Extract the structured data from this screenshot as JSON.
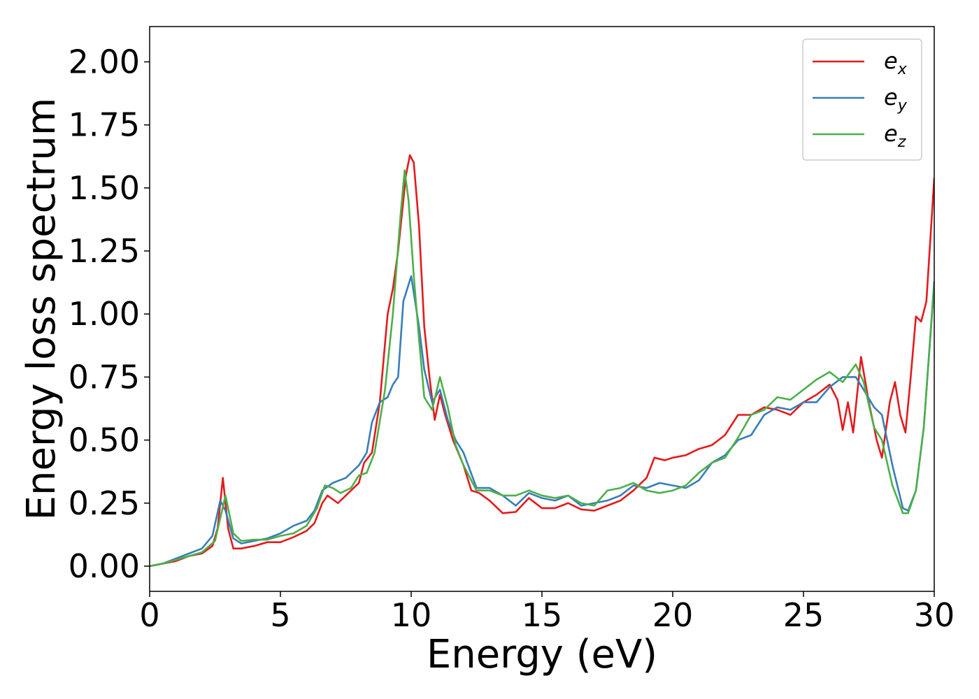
{
  "chart_data": {
    "type": "line",
    "xlabel": "Energy (eV)",
    "ylabel": "Energy loss spectrum",
    "xlim": [
      0,
      30
    ],
    "xticks": [
      0,
      5,
      10,
      15,
      20,
      25,
      30
    ],
    "ylim": [
      -0.1,
      2.14
    ],
    "yticks": [
      {
        "value": 0,
        "label": "0.00"
      },
      {
        "value": 0.25,
        "label": "0.25"
      },
      {
        "value": 0.5,
        "label": "0.50"
      },
      {
        "value": 0.75,
        "label": "0.75"
      },
      {
        "value": 1,
        "label": "1.00"
      },
      {
        "value": 1.25,
        "label": "1.25"
      },
      {
        "value": 1.5,
        "label": "1.50"
      },
      {
        "value": 1.75,
        "label": "1.75"
      },
      {
        "value": 2,
        "label": "2.00"
      }
    ],
    "legend": "upper right",
    "grid": false,
    "series": [
      {
        "name": "e_x",
        "color": "#e41a1c",
        "x": [
          0,
          0.5,
          1,
          1.5,
          2,
          2.4,
          2.6,
          2.8,
          3.0,
          3.2,
          3.5,
          4,
          4.5,
          5,
          5.5,
          6,
          6.3,
          6.6,
          6.8,
          7.2,
          7.6,
          8,
          8.2,
          8.5,
          8.8,
          9.1,
          9.3,
          9.5,
          9.8,
          9.95,
          10.1,
          10.3,
          10.5,
          10.7,
          10.9,
          11.1,
          11.3,
          11.6,
          12,
          12.3,
          12.6,
          13,
          13.5,
          14,
          14.5,
          15,
          15.5,
          16,
          16.5,
          17,
          17.5,
          18,
          18.5,
          19,
          19.3,
          19.7,
          20,
          20.5,
          21,
          21.5,
          22,
          22.5,
          23,
          23.5,
          24,
          24.5,
          25,
          25.5,
          26,
          26.3,
          26.5,
          26.7,
          26.9,
          27.2,
          27.5,
          27.8,
          28,
          28.3,
          28.5,
          28.7,
          28.9,
          29.1,
          29.3,
          29.5,
          29.7,
          30
        ],
        "values": [
          0,
          0.01,
          0.02,
          0.04,
          0.05,
          0.08,
          0.15,
          0.35,
          0.15,
          0.07,
          0.07,
          0.08,
          0.095,
          0.095,
          0.115,
          0.14,
          0.17,
          0.25,
          0.28,
          0.25,
          0.29,
          0.33,
          0.41,
          0.45,
          0.65,
          1.0,
          1.1,
          1.25,
          1.55,
          1.63,
          1.6,
          1.35,
          0.95,
          0.75,
          0.58,
          0.68,
          0.6,
          0.5,
          0.4,
          0.3,
          0.29,
          0.26,
          0.21,
          0.215,
          0.27,
          0.23,
          0.23,
          0.25,
          0.225,
          0.22,
          0.24,
          0.26,
          0.3,
          0.35,
          0.43,
          0.42,
          0.43,
          0.44,
          0.465,
          0.48,
          0.52,
          0.6,
          0.6,
          0.63,
          0.62,
          0.6,
          0.65,
          0.68,
          0.72,
          0.66,
          0.54,
          0.65,
          0.53,
          0.83,
          0.65,
          0.5,
          0.43,
          0.65,
          0.73,
          0.6,
          0.53,
          0.75,
          0.99,
          0.97,
          1.05,
          1.54
        ]
      },
      {
        "name": "e_y",
        "color": "#377eb8",
        "x": [
          0,
          0.5,
          1,
          1.5,
          2,
          2.4,
          2.7,
          2.9,
          3.2,
          3.5,
          4,
          4.5,
          5,
          5.5,
          6,
          6.3,
          6.6,
          7,
          7.5,
          8,
          8.3,
          8.5,
          8.8,
          9.1,
          9.3,
          9.5,
          9.7,
          10,
          10.3,
          10.5,
          10.8,
          11.1,
          11.4,
          11.7,
          12,
          12.5,
          13,
          13.5,
          14,
          14.5,
          15,
          15.5,
          16,
          16.5,
          17,
          17.5,
          18,
          18.5,
          19,
          19.5,
          20,
          20.5,
          21,
          21.5,
          22,
          22.5,
          23,
          23.5,
          24,
          24.5,
          25,
          25.5,
          26,
          26.5,
          27,
          27.3,
          27.7,
          28,
          28.4,
          28.8,
          29,
          29.3,
          29.6,
          30
        ],
        "values": [
          0,
          0.01,
          0.03,
          0.05,
          0.07,
          0.12,
          0.26,
          0.22,
          0.11,
          0.09,
          0.1,
          0.11,
          0.13,
          0.16,
          0.18,
          0.22,
          0.3,
          0.33,
          0.35,
          0.4,
          0.45,
          0.57,
          0.65,
          0.67,
          0.72,
          0.75,
          1.05,
          1.15,
          0.95,
          0.78,
          0.65,
          0.7,
          0.58,
          0.5,
          0.45,
          0.31,
          0.31,
          0.28,
          0.24,
          0.29,
          0.27,
          0.26,
          0.28,
          0.24,
          0.25,
          0.26,
          0.28,
          0.32,
          0.31,
          0.33,
          0.32,
          0.31,
          0.34,
          0.41,
          0.44,
          0.5,
          0.52,
          0.6,
          0.63,
          0.62,
          0.65,
          0.65,
          0.71,
          0.75,
          0.75,
          0.7,
          0.63,
          0.6,
          0.4,
          0.23,
          0.22,
          0.3,
          0.55,
          1.13
        ]
      },
      {
        "name": "e_z",
        "color": "#4daf4a",
        "x": [
          0,
          0.5,
          1,
          1.5,
          2,
          2.5,
          2.9,
          3.2,
          3.5,
          4,
          4.5,
          5,
          5.5,
          6,
          6.4,
          6.7,
          7,
          7.3,
          7.7,
          8,
          8.3,
          8.6,
          9,
          9.3,
          9.6,
          9.75,
          9.9,
          10.1,
          10.3,
          10.5,
          10.8,
          11.1,
          11.4,
          11.7,
          12,
          12.5,
          13,
          13.5,
          14,
          14.5,
          15,
          15.5,
          16,
          16.5,
          17,
          17.5,
          18,
          18.5,
          19,
          19.5,
          20,
          20.5,
          21,
          21.5,
          22,
          22.5,
          23,
          23.5,
          24,
          24.5,
          25,
          25.5,
          26,
          26.5,
          27,
          27.3,
          27.7,
          28,
          28.4,
          28.8,
          29,
          29.3,
          29.6,
          30
        ],
        "values": [
          0,
          0.01,
          0.025,
          0.04,
          0.055,
          0.1,
          0.28,
          0.13,
          0.1,
          0.105,
          0.105,
          0.12,
          0.13,
          0.16,
          0.23,
          0.32,
          0.31,
          0.29,
          0.31,
          0.36,
          0.37,
          0.45,
          0.7,
          1.0,
          1.4,
          1.57,
          1.45,
          1.15,
          0.9,
          0.67,
          0.62,
          0.75,
          0.63,
          0.48,
          0.4,
          0.3,
          0.3,
          0.28,
          0.28,
          0.3,
          0.28,
          0.27,
          0.28,
          0.25,
          0.24,
          0.3,
          0.31,
          0.33,
          0.3,
          0.29,
          0.3,
          0.32,
          0.37,
          0.41,
          0.43,
          0.51,
          0.6,
          0.62,
          0.67,
          0.66,
          0.7,
          0.74,
          0.77,
          0.73,
          0.8,
          0.73,
          0.55,
          0.5,
          0.32,
          0.21,
          0.21,
          0.3,
          0.55,
          1.12
        ]
      }
    ]
  }
}
